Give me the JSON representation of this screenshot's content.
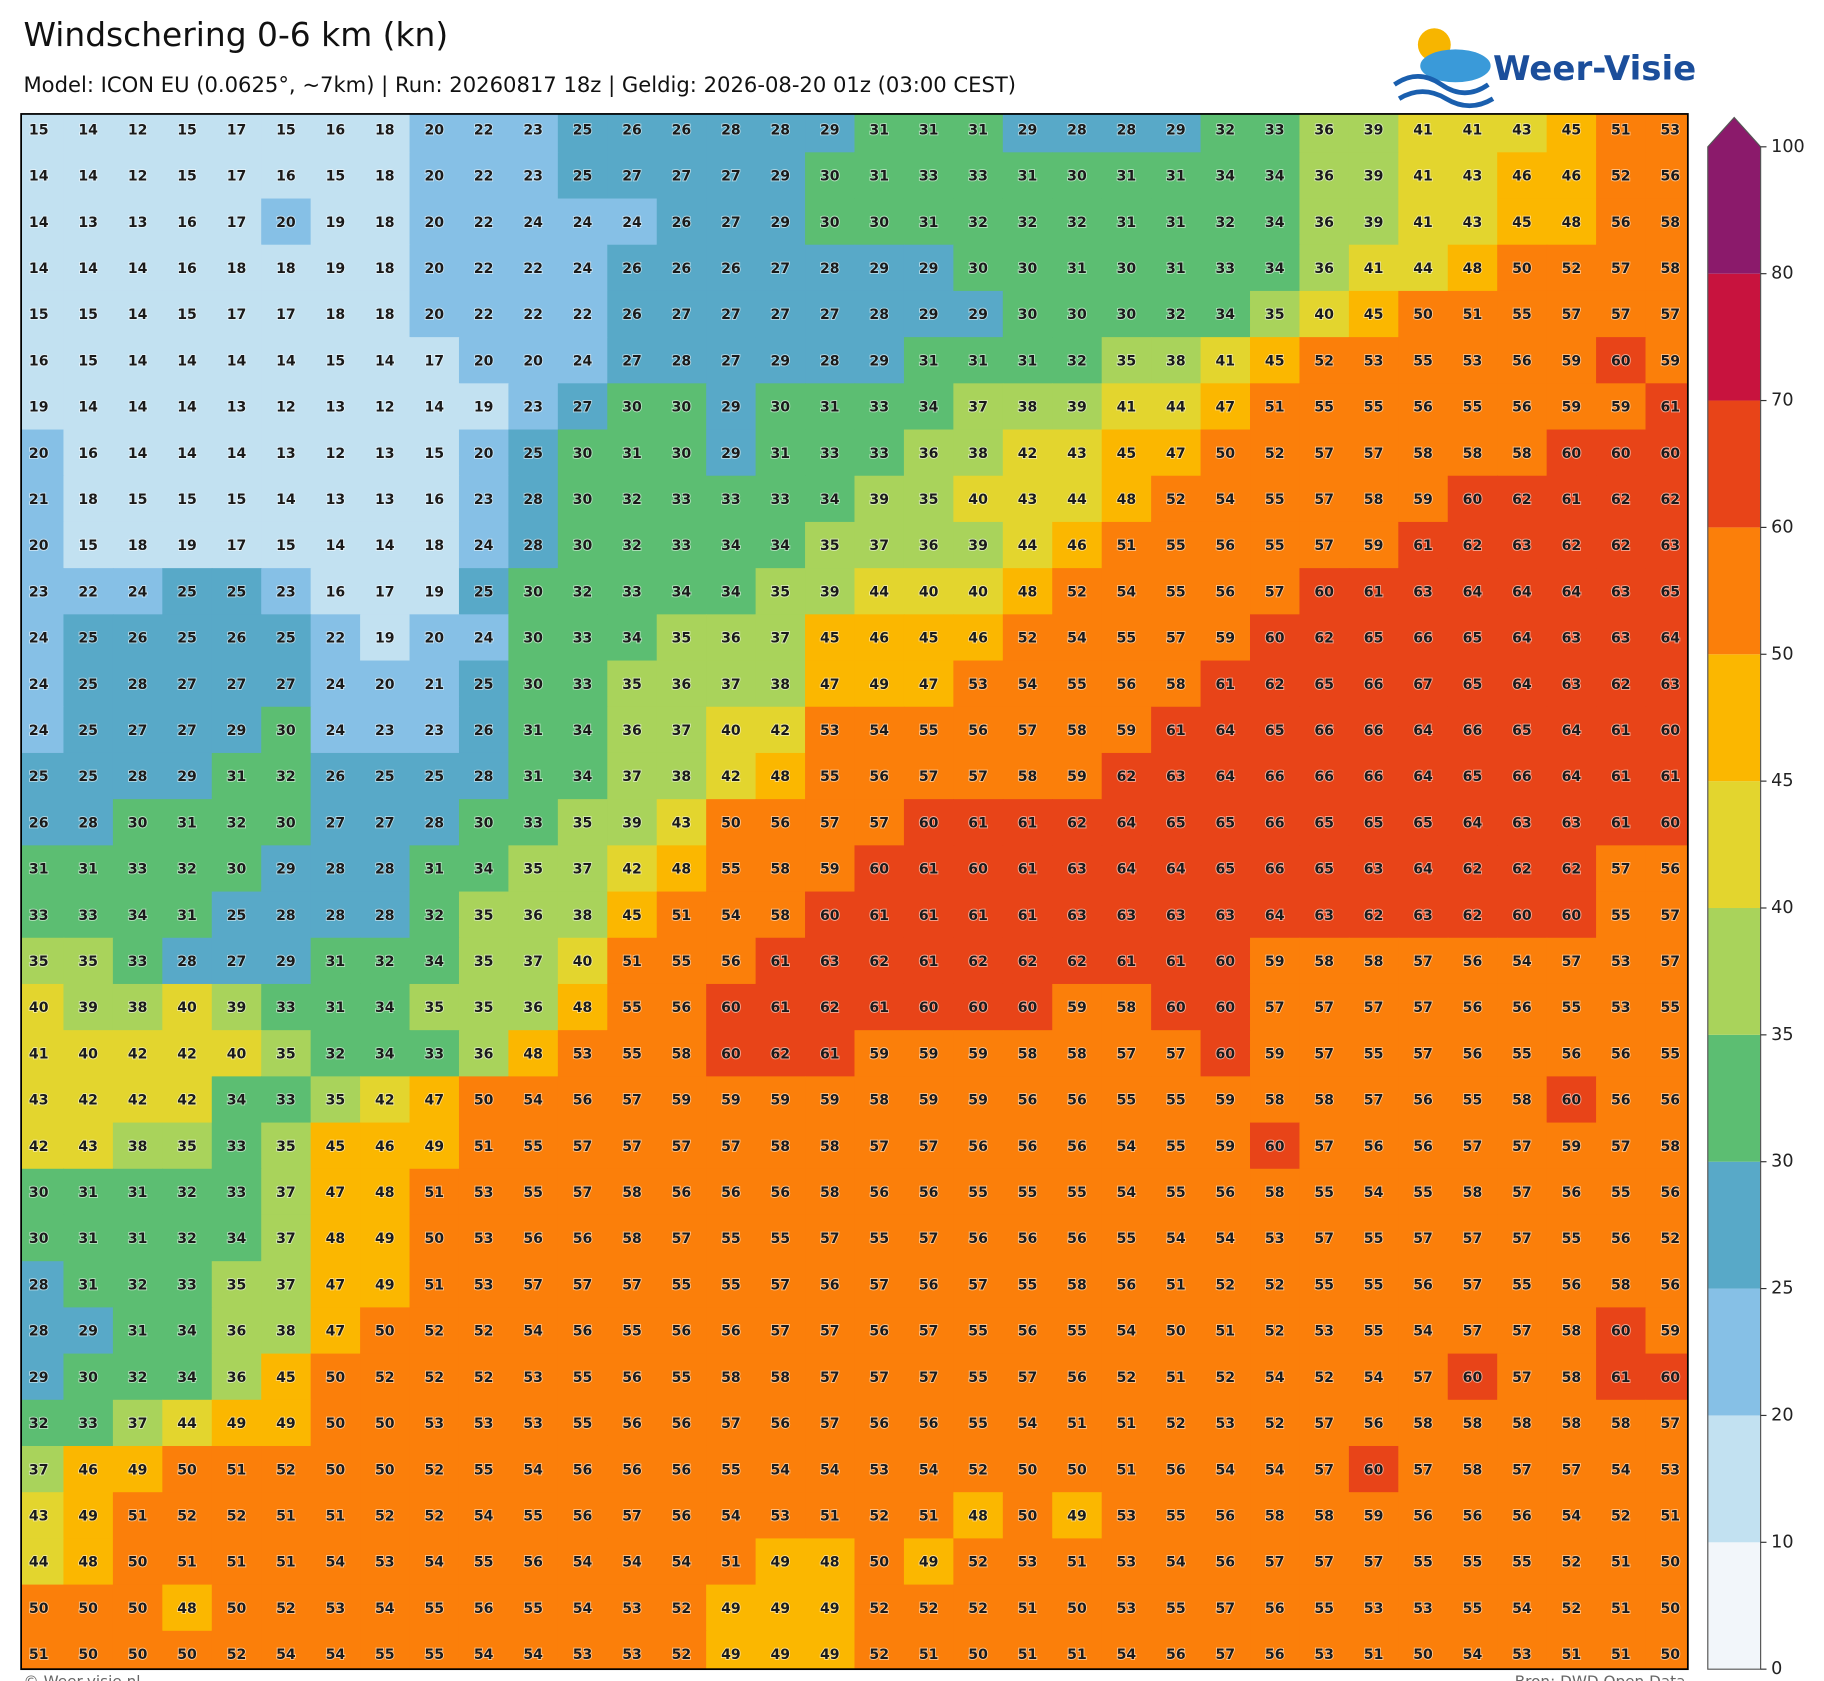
{
  "header": {
    "title": "Windschering 0-6 km (kn)",
    "subtitle": "Model: ICON EU (0.0625°, ~7km)  |  Run: 20260817 18z  |  Geldig: 2026-08-20 01z (03:00 CEST)"
  },
  "logo": {
    "text": "Weer-Visie"
  },
  "grid": {
    "rows": [
      [
        15,
        14,
        12,
        15,
        17,
        15,
        16,
        18,
        20,
        22,
        23,
        25,
        26,
        26,
        28,
        28,
        29,
        31,
        31,
        31,
        29,
        28,
        28,
        29,
        32,
        33,
        36,
        39,
        41,
        41,
        43,
        45,
        51,
        53
      ],
      [
        14,
        14,
        12,
        15,
        17,
        16,
        15,
        18,
        20,
        22,
        23,
        25,
        27,
        27,
        27,
        29,
        30,
        31,
        33,
        33,
        31,
        30,
        31,
        31,
        34,
        34,
        36,
        39,
        41,
        43,
        46,
        46,
        52,
        56
      ],
      [
        14,
        13,
        13,
        16,
        17,
        20,
        19,
        18,
        20,
        22,
        24,
        24,
        24,
        26,
        27,
        29,
        30,
        30,
        31,
        32,
        32,
        32,
        31,
        31,
        32,
        34,
        36,
        39,
        41,
        43,
        45,
        48,
        56,
        58
      ],
      [
        14,
        14,
        14,
        16,
        18,
        18,
        19,
        18,
        20,
        22,
        22,
        24,
        26,
        26,
        26,
        27,
        28,
        29,
        29,
        30,
        30,
        31,
        30,
        31,
        33,
        34,
        36,
        41,
        44,
        48,
        50,
        52,
        57,
        58
      ],
      [
        15,
        15,
        14,
        15,
        17,
        17,
        18,
        18,
        20,
        22,
        22,
        22,
        26,
        27,
        27,
        27,
        27,
        28,
        29,
        29,
        30,
        30,
        30,
        32,
        34,
        35,
        40,
        45,
        50,
        51,
        55,
        57,
        57,
        57
      ],
      [
        16,
        15,
        14,
        14,
        14,
        14,
        15,
        14,
        17,
        20,
        20,
        24,
        27,
        28,
        27,
        29,
        28,
        29,
        31,
        31,
        31,
        32,
        35,
        38,
        41,
        45,
        52,
        53,
        55,
        53,
        56,
        59,
        60,
        59
      ],
      [
        19,
        14,
        14,
        14,
        13,
        12,
        13,
        12,
        14,
        19,
        23,
        27,
        30,
        30,
        29,
        30,
        31,
        33,
        34,
        37,
        38,
        39,
        41,
        44,
        47,
        51,
        55,
        55,
        56,
        55,
        56,
        59,
        59,
        61
      ],
      [
        20,
        16,
        14,
        14,
        14,
        13,
        12,
        13,
        15,
        20,
        25,
        30,
        31,
        30,
        29,
        31,
        33,
        33,
        36,
        38,
        42,
        43,
        45,
        47,
        50,
        52,
        57,
        57,
        58,
        58,
        58,
        60,
        60,
        60
      ],
      [
        21,
        18,
        15,
        15,
        15,
        14,
        13,
        13,
        16,
        23,
        28,
        30,
        32,
        33,
        33,
        33,
        34,
        39,
        35,
        40,
        43,
        44,
        48,
        52,
        54,
        55,
        57,
        58,
        59,
        60,
        62,
        61,
        62,
        62
      ],
      [
        20,
        15,
        18,
        19,
        17,
        15,
        14,
        14,
        18,
        24,
        28,
        30,
        32,
        33,
        34,
        34,
        35,
        37,
        36,
        39,
        44,
        46,
        51,
        55,
        56,
        55,
        57,
        59,
        61,
        62,
        63,
        62,
        62,
        63
      ],
      [
        23,
        22,
        24,
        25,
        25,
        23,
        16,
        17,
        19,
        25,
        30,
        32,
        33,
        34,
        34,
        35,
        39,
        44,
        40,
        40,
        48,
        52,
        54,
        55,
        56,
        57,
        60,
        61,
        63,
        64,
        64,
        64,
        63,
        65
      ],
      [
        24,
        25,
        26,
        25,
        26,
        25,
        22,
        19,
        20,
        24,
        30,
        33,
        34,
        35,
        36,
        37,
        45,
        46,
        45,
        46,
        52,
        54,
        55,
        57,
        59,
        60,
        62,
        65,
        66,
        65,
        64,
        63,
        63,
        64
      ],
      [
        24,
        25,
        28,
        27,
        27,
        27,
        24,
        20,
        21,
        25,
        30,
        33,
        35,
        36,
        37,
        38,
        47,
        49,
        47,
        53,
        54,
        55,
        56,
        58,
        61,
        62,
        65,
        66,
        67,
        65,
        64,
        63,
        62,
        63
      ],
      [
        24,
        25,
        27,
        27,
        29,
        30,
        24,
        23,
        23,
        26,
        31,
        34,
        36,
        37,
        40,
        42,
        53,
        54,
        55,
        56,
        57,
        58,
        59,
        61,
        64,
        65,
        66,
        66,
        64,
        66,
        65,
        64,
        61,
        60
      ],
      [
        25,
        25,
        28,
        29,
        31,
        32,
        26,
        25,
        25,
        28,
        31,
        34,
        37,
        38,
        42,
        48,
        55,
        56,
        57,
        57,
        58,
        59,
        62,
        63,
        64,
        66,
        66,
        66,
        64,
        65,
        66,
        64,
        61,
        61
      ],
      [
        26,
        28,
        30,
        31,
        32,
        30,
        27,
        27,
        28,
        30,
        33,
        35,
        39,
        43,
        50,
        56,
        57,
        57,
        60,
        61,
        61,
        62,
        64,
        65,
        65,
        66,
        65,
        65,
        65,
        64,
        63,
        63,
        61,
        60
      ],
      [
        31,
        31,
        33,
        32,
        30,
        29,
        28,
        28,
        31,
        34,
        35,
        37,
        42,
        48,
        55,
        58,
        59,
        60,
        61,
        60,
        61,
        63,
        64,
        64,
        65,
        66,
        65,
        63,
        64,
        62,
        62,
        62,
        57,
        56
      ],
      [
        33,
        33,
        34,
        31,
        25,
        28,
        28,
        28,
        32,
        35,
        36,
        38,
        45,
        51,
        54,
        58,
        60,
        61,
        61,
        61,
        61,
        63,
        63,
        63,
        63,
        64,
        63,
        62,
        63,
        62,
        60,
        60,
        55,
        57
      ],
      [
        35,
        35,
        33,
        28,
        27,
        29,
        31,
        32,
        34,
        35,
        37,
        40,
        51,
        55,
        56,
        61,
        63,
        62,
        61,
        62,
        62,
        62,
        61,
        61,
        60,
        59,
        58,
        58,
        57,
        56,
        54,
        57,
        53,
        57
      ],
      [
        40,
        39,
        38,
        40,
        39,
        33,
        31,
        34,
        35,
        35,
        36,
        48,
        55,
        56,
        60,
        61,
        62,
        61,
        60,
        60,
        60,
        59,
        58,
        60,
        60,
        57,
        57,
        57,
        57,
        56,
        56,
        55,
        53,
        55
      ],
      [
        41,
        40,
        42,
        42,
        40,
        35,
        32,
        34,
        33,
        36,
        48,
        53,
        55,
        58,
        60,
        62,
        61,
        59,
        59,
        59,
        58,
        58,
        57,
        57,
        60,
        59,
        57,
        55,
        57,
        56,
        55,
        56,
        56,
        55
      ],
      [
        43,
        42,
        42,
        42,
        34,
        33,
        35,
        42,
        47,
        50,
        54,
        56,
        57,
        59,
        59,
        59,
        59,
        58,
        59,
        59,
        56,
        56,
        55,
        55,
        59,
        58,
        58,
        57,
        56,
        55,
        58,
        60,
        56,
        56
      ],
      [
        42,
        43,
        38,
        35,
        33,
        35,
        45,
        46,
        49,
        51,
        55,
        57,
        57,
        57,
        57,
        58,
        58,
        57,
        57,
        56,
        56,
        56,
        54,
        55,
        59,
        60,
        57,
        56,
        56,
        57,
        57,
        59,
        57,
        58
      ],
      [
        30,
        31,
        31,
        32,
        33,
        37,
        47,
        48,
        51,
        53,
        55,
        57,
        58,
        56,
        56,
        56,
        58,
        56,
        56,
        55,
        55,
        55,
        54,
        55,
        56,
        58,
        55,
        54,
        55,
        58,
        57,
        56,
        55,
        56
      ],
      [
        30,
        31,
        31,
        32,
        34,
        37,
        48,
        49,
        50,
        53,
        56,
        56,
        58,
        57,
        55,
        55,
        57,
        55,
        57,
        56,
        56,
        56,
        55,
        54,
        54,
        53,
        57,
        55,
        57,
        57,
        57,
        55,
        56,
        52
      ],
      [
        28,
        31,
        32,
        33,
        35,
        37,
        47,
        49,
        51,
        53,
        57,
        57,
        57,
        55,
        55,
        57,
        56,
        57,
        56,
        57,
        55,
        58,
        56,
        51,
        52,
        52,
        55,
        55,
        56,
        57,
        55,
        56,
        58,
        56
      ],
      [
        28,
        29,
        31,
        34,
        36,
        38,
        47,
        50,
        52,
        52,
        54,
        56,
        55,
        56,
        56,
        57,
        57,
        56,
        57,
        55,
        56,
        55,
        54,
        50,
        51,
        52,
        53,
        55,
        54,
        57,
        57,
        58,
        60,
        59
      ],
      [
        29,
        30,
        32,
        34,
        36,
        45,
        50,
        52,
        52,
        52,
        53,
        55,
        56,
        55,
        58,
        58,
        57,
        57,
        57,
        55,
        57,
        56,
        52,
        51,
        52,
        54,
        52,
        54,
        57,
        60,
        57,
        58,
        61,
        60
      ],
      [
        32,
        33,
        37,
        44,
        49,
        49,
        50,
        50,
        53,
        53,
        53,
        55,
        56,
        56,
        57,
        56,
        57,
        56,
        56,
        55,
        54,
        51,
        51,
        52,
        53,
        52,
        57,
        56,
        58,
        58,
        58,
        58,
        58,
        57
      ],
      [
        37,
        46,
        49,
        50,
        51,
        52,
        50,
        50,
        52,
        55,
        54,
        56,
        56,
        56,
        55,
        54,
        54,
        53,
        54,
        52,
        50,
        50,
        51,
        56,
        54,
        54,
        57,
        60,
        57,
        58,
        57,
        57,
        54,
        53
      ],
      [
        43,
        49,
        51,
        52,
        52,
        51,
        51,
        52,
        52,
        54,
        55,
        56,
        57,
        56,
        54,
        53,
        51,
        52,
        51,
        48,
        50,
        49,
        53,
        55,
        56,
        58,
        58,
        59,
        56,
        56,
        56,
        54,
        52,
        51
      ],
      [
        44,
        48,
        50,
        51,
        51,
        51,
        54,
        53,
        54,
        55,
        56,
        54,
        54,
        54,
        51,
        49,
        48,
        50,
        49,
        52,
        53,
        51,
        53,
        54,
        56,
        57,
        57,
        57,
        55,
        55,
        55,
        52,
        51,
        50
      ],
      [
        50,
        50,
        50,
        48,
        50,
        52,
        53,
        54,
        55,
        56,
        55,
        54,
        53,
        52,
        49,
        49,
        49,
        52,
        52,
        52,
        51,
        50,
        53,
        55,
        57,
        56,
        55,
        53,
        53,
        55,
        54,
        52,
        51,
        50
      ],
      [
        51,
        50,
        50,
        50,
        52,
        54,
        54,
        55,
        55,
        54,
        54,
        53,
        53,
        52,
        49,
        49,
        49,
        52,
        51,
        50,
        51,
        51,
        54,
        56,
        57,
        56,
        53,
        51,
        50,
        54,
        53,
        51,
        51,
        50
      ]
    ]
  },
  "colorbar": {
    "levels": [
      0,
      10,
      20,
      25,
      30,
      35,
      40,
      45,
      50,
      60,
      70,
      80,
      100
    ],
    "colors": [
      "#f2f6fa",
      "#c2e1f1",
      "#86c0e6",
      "#58a9c8",
      "#5cbe72",
      "#a9d35b",
      "#e3d52e",
      "#fbb700",
      "#fb7f0a",
      "#e84418",
      "#c8133e",
      "#8b1a6b"
    ]
  },
  "footer": {
    "left": "© Weer-visie.nl",
    "right": "Bron: DWD Open Data"
  }
}
